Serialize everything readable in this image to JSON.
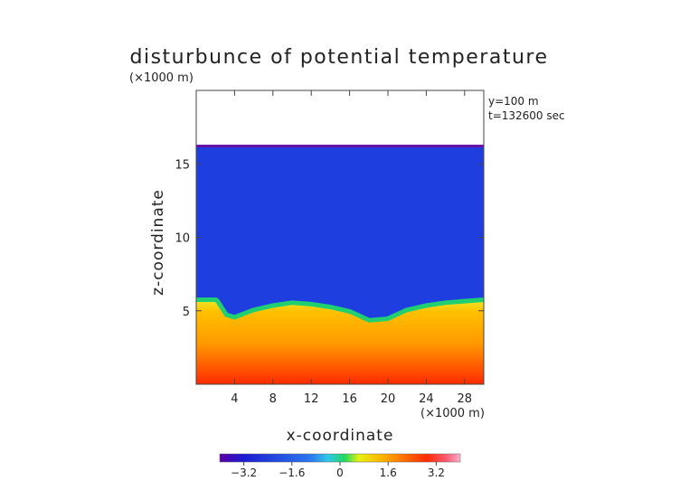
{
  "chart_data": {
    "type": "heatmap",
    "title": "disturbunce of potential temperature",
    "xlabel": "x-coordinate",
    "ylabel": "z-coordinate",
    "x_unit": "(×1000 m)",
    "y_unit": "(×1000 m)",
    "annotations": [
      "y=100 m",
      "t=132600 sec"
    ],
    "xlim": [
      0,
      30
    ],
    "ylim": [
      0,
      20
    ],
    "x_ticks": [
      4,
      8,
      12,
      16,
      20,
      24,
      28
    ],
    "y_ticks": [
      5,
      10,
      15
    ],
    "colorbar": {
      "range": [
        -4,
        4
      ],
      "ticks": [
        -3.2,
        -1.6,
        0,
        1.6,
        3.2
      ],
      "tick_labels": [
        "−3.2",
        "−1.6",
        "0",
        "1.6",
        "3.2"
      ]
    },
    "data_top_z": 16.3,
    "field_description_values": {
      "upper_layer_value": -2.6,
      "lower_layer_value": 2.8
    },
    "interface_height_profile": {
      "x": [
        0,
        2,
        3,
        4,
        6,
        8,
        10,
        12,
        14,
        16,
        18,
        20,
        22,
        24,
        26,
        28,
        30
      ],
      "z": [
        5.6,
        5.6,
        4.6,
        4.4,
        4.9,
        5.2,
        5.4,
        5.3,
        5.1,
        4.8,
        4.2,
        4.3,
        4.9,
        5.2,
        5.4,
        5.5,
        5.6
      ]
    }
  }
}
